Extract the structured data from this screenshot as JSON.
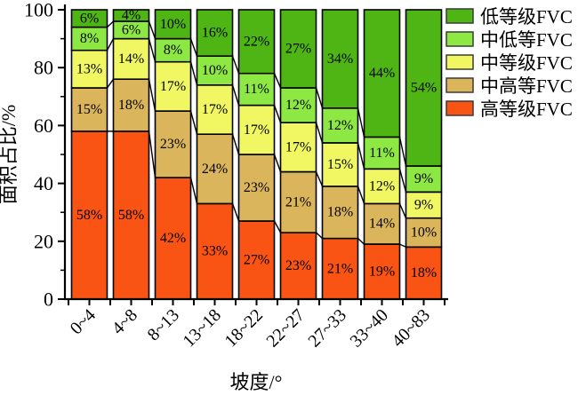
{
  "chart": {
    "background": "#ffffff",
    "axis_color": "#000000",
    "text_color": "#000000",
    "legend_swatch_border": "#3a3a3a"
  },
  "chart_data": {
    "type": "bar",
    "stacked": true,
    "orientation": "vertical",
    "title": "",
    "xlabel": "坡度/°",
    "ylabel": "面积占比/%",
    "ylim": [
      0,
      100
    ],
    "yticks_major": [
      0,
      20,
      40,
      60,
      80,
      100
    ],
    "yticks_minor": [
      10,
      30,
      50,
      70,
      90
    ],
    "grid": false,
    "legend_position": "outside-top-right",
    "legend_reverse": true,
    "bar_label_suffix": "%",
    "connectors_between_bars": true,
    "categories": [
      "0~4",
      "4~8",
      "8~13",
      "13~18",
      "18~22",
      "22~27",
      "27~33",
      "33~40",
      "40~83"
    ],
    "series": [
      {
        "name": "高等级FVC",
        "color": "#FA5414",
        "values": [
          58,
          58,
          42,
          33,
          27,
          23,
          21,
          19,
          18
        ]
      },
      {
        "name": "中高等FVC",
        "color": "#DBB55C",
        "values": [
          15,
          18,
          23,
          24,
          23,
          21,
          18,
          14,
          10
        ]
      },
      {
        "name": "中等级FVC",
        "color": "#F0F763",
        "values": [
          13,
          14,
          17,
          17,
          17,
          17,
          15,
          12,
          9
        ]
      },
      {
        "name": "中低等FVC",
        "color": "#8EE844",
        "values": [
          8,
          6,
          8,
          10,
          11,
          12,
          12,
          11,
          9
        ]
      },
      {
        "name": "低等级FVC",
        "color": "#4EB514",
        "values": [
          6,
          4,
          10,
          16,
          22,
          27,
          34,
          44,
          54
        ]
      }
    ]
  }
}
